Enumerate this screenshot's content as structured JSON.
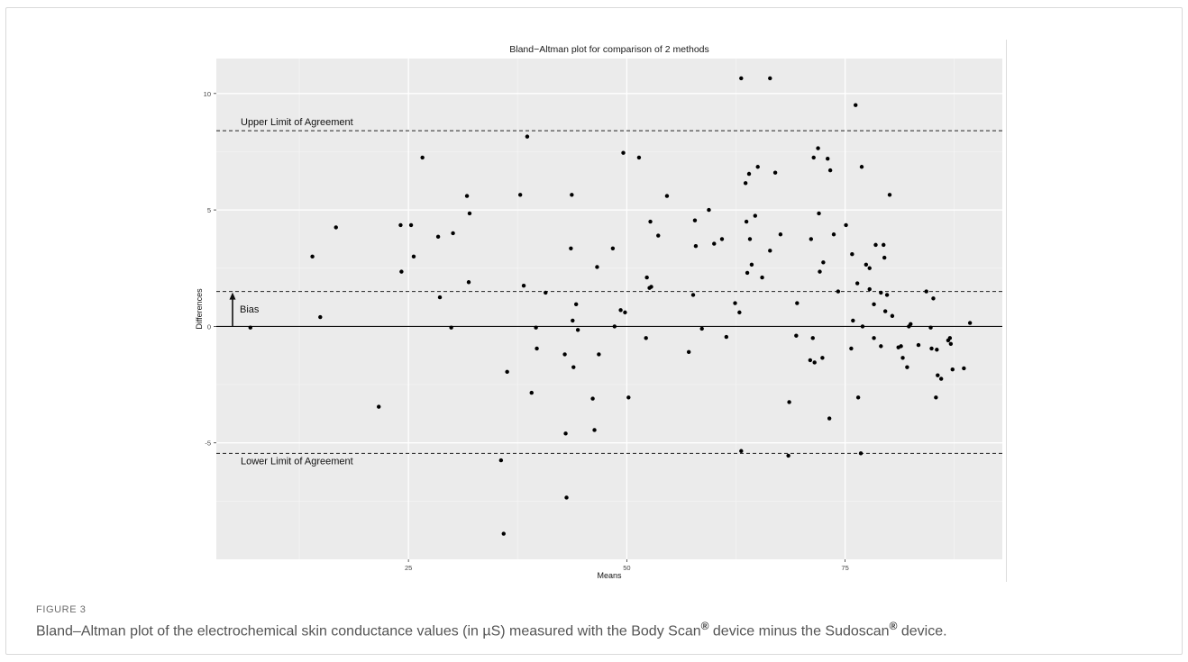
{
  "figure": {
    "label": "FIGURE 3",
    "caption_part1": "Bland–Altman plot of the electrochemical skin conductance values (in µS) measured with the Body Scan",
    "caption_reg1": "®",
    "caption_part2": " device minus the Sudoscan",
    "caption_reg2": "®",
    "caption_part3": " device."
  },
  "chart_data": {
    "type": "scatter",
    "title": "Bland−Altman plot for comparison of 2 methods",
    "xlabel": "Means",
    "ylabel": "Differences",
    "xlim": [
      3,
      93
    ],
    "ylim": [
      -10.0,
      11.5
    ],
    "x_ticks": [
      25,
      50,
      75
    ],
    "x_tick_labels": [
      "25",
      "50",
      "75"
    ],
    "y_ticks": [
      -5,
      0,
      5,
      10
    ],
    "y_tick_labels": [
      "-5",
      "0",
      "5",
      "10"
    ],
    "grid": true,
    "reference_lines": {
      "upper_limit": 8.4,
      "bias": 1.5,
      "zero": 0,
      "lower_limit": -5.45
    },
    "annotations": {
      "upper_label": "Upper Limit of Agreement",
      "lower_label": "Lower Limit of Agreement",
      "bias_label": "Bias"
    },
    "points": [
      [
        6.9,
        -0.05
      ],
      [
        14.0,
        3.0
      ],
      [
        14.9,
        0.4
      ],
      [
        16.7,
        4.25
      ],
      [
        21.6,
        -3.45
      ],
      [
        24.1,
        4.35
      ],
      [
        24.2,
        2.35
      ],
      [
        25.3,
        4.35
      ],
      [
        25.6,
        3.0
      ],
      [
        26.6,
        7.25
      ],
      [
        28.4,
        3.85
      ],
      [
        28.6,
        1.25
      ],
      [
        29.9,
        -0.05
      ],
      [
        30.1,
        4.0
      ],
      [
        31.7,
        5.6
      ],
      [
        31.9,
        1.9
      ],
      [
        32.0,
        4.85
      ],
      [
        35.6,
        -5.75
      ],
      [
        35.9,
        -8.9
      ],
      [
        36.3,
        -1.95
      ],
      [
        37.8,
        5.65
      ],
      [
        38.2,
        1.75
      ],
      [
        38.6,
        8.15
      ],
      [
        39.1,
        -2.85
      ],
      [
        39.6,
        -0.05
      ],
      [
        39.7,
        -0.95
      ],
      [
        40.7,
        1.45
      ],
      [
        42.9,
        -1.2
      ],
      [
        43.0,
        -4.6
      ],
      [
        43.1,
        -7.35
      ],
      [
        43.6,
        3.35
      ],
      [
        43.7,
        5.65
      ],
      [
        43.8,
        0.25
      ],
      [
        43.9,
        -1.75
      ],
      [
        44.2,
        0.95
      ],
      [
        44.4,
        -0.15
      ],
      [
        46.1,
        -3.1
      ],
      [
        46.3,
        -4.45
      ],
      [
        46.6,
        2.55
      ],
      [
        46.8,
        -1.2
      ],
      [
        48.4,
        3.35
      ],
      [
        48.6,
        -0.0
      ],
      [
        49.3,
        0.7
      ],
      [
        49.6,
        7.45
      ],
      [
        49.8,
        0.6
      ],
      [
        50.2,
        -3.05
      ],
      [
        51.4,
        7.25
      ],
      [
        52.2,
        -0.5
      ],
      [
        52.3,
        2.1
      ],
      [
        52.6,
        1.65
      ],
      [
        52.7,
        4.5
      ],
      [
        52.8,
        1.7
      ],
      [
        53.6,
        3.9
      ],
      [
        54.6,
        5.6
      ],
      [
        57.1,
        -1.1
      ],
      [
        57.6,
        1.35
      ],
      [
        57.8,
        4.55
      ],
      [
        57.9,
        3.45
      ],
      [
        58.6,
        -0.1
      ],
      [
        59.4,
        5.0
      ],
      [
        60.0,
        3.55
      ],
      [
        60.9,
        3.75
      ],
      [
        61.4,
        -0.45
      ],
      [
        62.4,
        1.0
      ],
      [
        62.9,
        0.6
      ],
      [
        63.1,
        -5.35
      ],
      [
        63.1,
        10.65
      ],
      [
        63.6,
        6.15
      ],
      [
        63.7,
        4.5
      ],
      [
        63.8,
        2.3
      ],
      [
        64.0,
        6.55
      ],
      [
        64.1,
        3.75
      ],
      [
        64.3,
        2.65
      ],
      [
        64.7,
        4.75
      ],
      [
        65.0,
        6.85
      ],
      [
        65.5,
        2.1
      ],
      [
        66.4,
        3.25
      ],
      [
        66.4,
        10.65
      ],
      [
        67.0,
        6.6
      ],
      [
        67.6,
        3.95
      ],
      [
        68.5,
        -5.55
      ],
      [
        68.6,
        -3.25
      ],
      [
        69.4,
        -0.4
      ],
      [
        69.5,
        1.0
      ],
      [
        71.0,
        -1.45
      ],
      [
        71.1,
        3.75
      ],
      [
        71.3,
        -0.5
      ],
      [
        71.4,
        7.25
      ],
      [
        71.5,
        -1.55
      ],
      [
        71.9,
        7.65
      ],
      [
        72.0,
        4.85
      ],
      [
        72.1,
        2.35
      ],
      [
        72.4,
        -1.35
      ],
      [
        72.5,
        2.75
      ],
      [
        73.0,
        7.2
      ],
      [
        73.2,
        -3.95
      ],
      [
        73.3,
        6.7
      ],
      [
        73.7,
        3.95
      ],
      [
        74.2,
        1.5
      ],
      [
        75.1,
        4.35
      ],
      [
        75.7,
        -0.95
      ],
      [
        75.8,
        3.1
      ],
      [
        75.9,
        0.25
      ],
      [
        76.2,
        9.5
      ],
      [
        76.4,
        1.85
      ],
      [
        76.5,
        -3.05
      ],
      [
        76.8,
        -5.45
      ],
      [
        76.9,
        6.85
      ],
      [
        77.0,
        0.0
      ],
      [
        77.4,
        2.65
      ],
      [
        77.8,
        2.5
      ],
      [
        77.8,
        1.6
      ],
      [
        78.3,
        -0.5
      ],
      [
        78.3,
        0.95
      ],
      [
        78.5,
        3.5
      ],
      [
        79.1,
        1.45
      ],
      [
        79.1,
        -0.85
      ],
      [
        79.4,
        3.5
      ],
      [
        79.5,
        2.95
      ],
      [
        79.6,
        0.65
      ],
      [
        79.8,
        1.35
      ],
      [
        80.1,
        5.65
      ],
      [
        80.4,
        0.45
      ],
      [
        81.1,
        -0.9
      ],
      [
        81.4,
        -0.85
      ],
      [
        81.6,
        -1.35
      ],
      [
        82.1,
        -1.75
      ],
      [
        82.3,
        0.0
      ],
      [
        82.5,
        0.1
      ],
      [
        83.4,
        -0.8
      ],
      [
        84.3,
        1.5
      ],
      [
        84.8,
        -0.05
      ],
      [
        84.9,
        -0.95
      ],
      [
        85.1,
        1.2
      ],
      [
        85.4,
        -3.05
      ],
      [
        85.5,
        -1.0
      ],
      [
        85.6,
        -2.1
      ],
      [
        86.0,
        -2.25
      ],
      [
        86.8,
        -0.6
      ],
      [
        87.0,
        -0.5
      ],
      [
        87.1,
        -0.75
      ],
      [
        87.3,
        -1.85
      ],
      [
        88.6,
        -1.8
      ],
      [
        89.3,
        0.15
      ]
    ]
  }
}
